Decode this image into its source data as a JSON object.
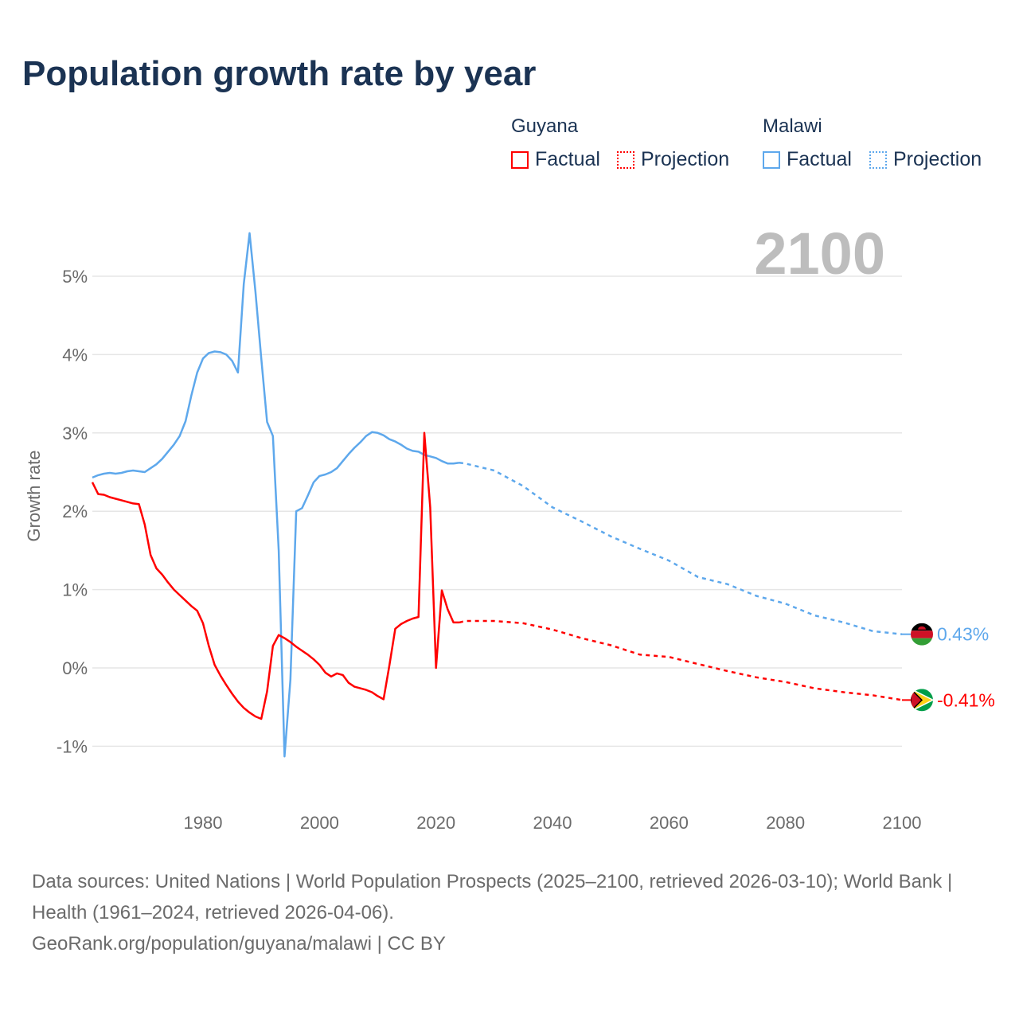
{
  "title": "Population growth rate by year",
  "legend": {
    "groups": [
      {
        "country": "Guyana",
        "factual": "Factual",
        "projection": "Projection",
        "color": "#ff0000"
      },
      {
        "country": "Malawi",
        "factual": "Factual",
        "projection": "Projection",
        "color": "#5ea8ec"
      }
    ]
  },
  "current_year_label": "2100",
  "chart_data": {
    "type": "line",
    "title": "Population growth rate by year",
    "xlabel": "",
    "ylabel": "Growth rate",
    "xlim": [
      1961,
      2100
    ],
    "ylim": [
      -1.5,
      5.8
    ],
    "x_ticks": [
      1980,
      2000,
      2020,
      2040,
      2060,
      2080,
      2100
    ],
    "x_tick_labels": [
      "1980",
      "2000",
      "2020",
      "2040",
      "2060",
      "2080",
      "2100"
    ],
    "y_ticks": [
      -1,
      0,
      1,
      2,
      3,
      4,
      5
    ],
    "y_tick_labels": [
      "-1%",
      "0%",
      "1%",
      "2%",
      "3%",
      "4%",
      "5%"
    ],
    "grid": true,
    "series": [
      {
        "name": "Malawi",
        "color": "#5ea8ec",
        "end_label": "0.43%",
        "flag": "malawi-flag",
        "factual": {
          "x": [
            1961,
            1962,
            1963,
            1964,
            1965,
            1966,
            1967,
            1968,
            1969,
            1970,
            1971,
            1972,
            1973,
            1974,
            1975,
            1976,
            1977,
            1978,
            1979,
            1980,
            1981,
            1982,
            1983,
            1984,
            1985,
            1986,
            1987,
            1988,
            1989,
            1990,
            1991,
            1992,
            1993,
            1994,
            1995,
            1996,
            1997,
            1998,
            1999,
            2000,
            2001,
            2002,
            2003,
            2004,
            2005,
            2006,
            2007,
            2008,
            2009,
            2010,
            2011,
            2012,
            2013,
            2014,
            2015,
            2016,
            2017,
            2018,
            2019,
            2020,
            2021,
            2022,
            2023,
            2024
          ],
          "values": [
            2.43,
            2.46,
            2.48,
            2.49,
            2.48,
            2.49,
            2.51,
            2.52,
            2.51,
            2.5,
            2.55,
            2.6,
            2.67,
            2.76,
            2.85,
            2.96,
            3.15,
            3.48,
            3.77,
            3.95,
            4.02,
            4.04,
            4.03,
            4.0,
            3.92,
            3.77,
            4.9,
            5.55,
            4.8,
            3.95,
            3.14,
            2.96,
            1.5,
            -1.13,
            -0.15,
            2.0,
            2.04,
            2.2,
            2.37,
            2.45,
            2.47,
            2.5,
            2.55,
            2.64,
            2.73,
            2.81,
            2.88,
            2.96,
            3.01,
            3.0,
            2.97,
            2.92,
            2.89,
            2.85,
            2.8,
            2.77,
            2.76,
            2.72,
            2.7,
            2.68,
            2.64,
            2.61,
            2.61,
            2.62
          ]
        },
        "projection": {
          "x": [
            2024,
            2025,
            2030,
            2035,
            2040,
            2045,
            2050,
            2055,
            2060,
            2065,
            2070,
            2075,
            2080,
            2085,
            2090,
            2095,
            2100
          ],
          "values": [
            2.62,
            2.61,
            2.52,
            2.32,
            2.05,
            1.87,
            1.68,
            1.52,
            1.37,
            1.16,
            1.07,
            0.92,
            0.82,
            0.67,
            0.58,
            0.47,
            0.43
          ]
        }
      },
      {
        "name": "Guyana",
        "color": "#ff0000",
        "end_label": "-0.41%",
        "flag": "guyana-flag",
        "factual": {
          "x": [
            1961,
            1962,
            1963,
            1964,
            1965,
            1966,
            1967,
            1968,
            1969,
            1970,
            1971,
            1972,
            1973,
            1974,
            1975,
            1976,
            1977,
            1978,
            1979,
            1980,
            1981,
            1982,
            1983,
            1984,
            1985,
            1986,
            1987,
            1988,
            1989,
            1990,
            1991,
            1992,
            1993,
            1994,
            1995,
            1996,
            1997,
            1998,
            1999,
            2000,
            2001,
            2002,
            2003,
            2004,
            2005,
            2006,
            2007,
            2008,
            2009,
            2010,
            2011,
            2012,
            2013,
            2014,
            2015,
            2016,
            2017,
            2018,
            2019,
            2020,
            2021,
            2022,
            2023,
            2024
          ],
          "values": [
            2.37,
            2.22,
            2.21,
            2.18,
            2.16,
            2.14,
            2.12,
            2.1,
            2.09,
            1.83,
            1.44,
            1.27,
            1.19,
            1.09,
            1.0,
            0.93,
            0.86,
            0.79,
            0.73,
            0.57,
            0.28,
            0.04,
            -0.1,
            -0.22,
            -0.33,
            -0.43,
            -0.51,
            -0.57,
            -0.62,
            -0.65,
            -0.3,
            0.28,
            0.42,
            0.38,
            0.33,
            0.27,
            0.22,
            0.17,
            0.11,
            0.04,
            -0.06,
            -0.11,
            -0.07,
            -0.09,
            -0.19,
            -0.24,
            -0.26,
            -0.28,
            -0.31,
            -0.36,
            -0.4,
            0.03,
            0.5,
            0.56,
            0.6,
            0.63,
            0.65,
            3.0,
            2.05,
            0.0,
            0.99,
            0.75,
            0.58,
            0.58
          ]
        },
        "projection": {
          "x": [
            2024,
            2025,
            2030,
            2035,
            2040,
            2045,
            2050,
            2055,
            2060,
            2065,
            2070,
            2075,
            2080,
            2085,
            2090,
            2095,
            2100
          ],
          "values": [
            0.58,
            0.6,
            0.6,
            0.57,
            0.49,
            0.38,
            0.29,
            0.17,
            0.14,
            0.05,
            -0.04,
            -0.12,
            -0.18,
            -0.26,
            -0.31,
            -0.35,
            -0.41
          ]
        }
      }
    ]
  },
  "footer": {
    "sources": "Data sources: United Nations | World Population Prospects (2025–2100, retrieved 2026-03-10); World Bank | Health (1961–2024, retrieved 2026-04-06).",
    "credit": "GeoRank.org/population/guyana/malawi | CC BY"
  }
}
